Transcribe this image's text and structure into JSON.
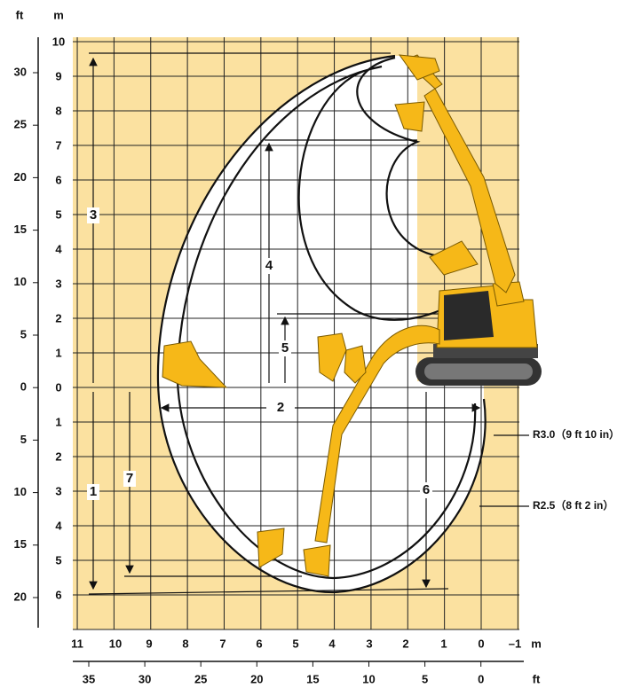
{
  "top_units": [
    "ft",
    "m"
  ],
  "left_ft_labels": [
    "30",
    "25",
    "20",
    "15",
    "10",
    "5",
    "0",
    "5",
    "10",
    "15",
    "20"
  ],
  "left_m_labels": [
    "10",
    "9",
    "8",
    "7",
    "6",
    "5",
    "4",
    "3",
    "2",
    "1",
    "0",
    "1",
    "2",
    "3",
    "4",
    "5",
    "6"
  ],
  "bottom_m_labels": [
    "11",
    "10",
    "9",
    "8",
    "7",
    "6",
    "5",
    "4",
    "3",
    "2",
    "1",
    "0",
    "–1"
  ],
  "bottom_m_unit": "m",
  "bottom_ft_labels": [
    "35",
    "30",
    "25",
    "20",
    "15",
    "10",
    "5",
    "0"
  ],
  "bottom_ft_unit": "ft",
  "dimension_labels": [
    "1",
    "2",
    "3",
    "4",
    "5",
    "6",
    "7"
  ],
  "radius_labels": [
    "R3.0（9 ft 10 in）",
    "R2.5（8 ft 2 in）"
  ]
}
